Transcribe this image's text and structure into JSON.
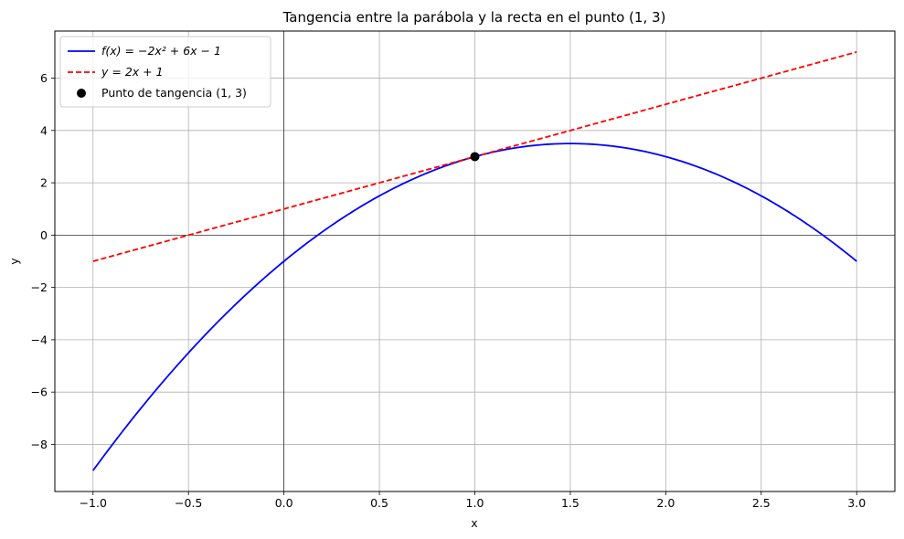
{
  "chart_data": {
    "type": "line",
    "title": "Tangencia entre la parábola y la recta en el punto (1, 3)",
    "xlabel": "x",
    "ylabel": "y",
    "xlim": [
      -1.2,
      3.2
    ],
    "ylim": [
      -9.8,
      7.8
    ],
    "xticks": [
      -1.0,
      -0.5,
      0.0,
      0.5,
      1.0,
      1.5,
      2.0,
      2.5,
      3.0
    ],
    "xtick_labels": [
      "−1.0",
      "−0.5",
      "0.0",
      "0.5",
      "1.0",
      "1.5",
      "2.0",
      "2.5",
      "3.0"
    ],
    "yticks": [
      -8,
      -6,
      -4,
      -2,
      0,
      2,
      4,
      6
    ],
    "ytick_labels": [
      "−8",
      "−6",
      "−4",
      "−2",
      "0",
      "2",
      "4",
      "6"
    ],
    "grid": true,
    "axis_lines": {
      "x": 0,
      "y": 0
    },
    "legend_position": "top-left",
    "series": [
      {
        "name": "f(x) = −2x² + 6x − 1",
        "kind": "line",
        "color": "#0000ff",
        "style": "solid",
        "x": [
          -1.0,
          -0.75,
          -0.5,
          -0.25,
          0.0,
          0.25,
          0.5,
          0.75,
          1.0,
          1.25,
          1.5,
          1.75,
          2.0,
          2.25,
          2.5,
          2.75,
          3.0
        ],
        "y": [
          -9.0,
          -6.625,
          -4.5,
          -2.625,
          -1.0,
          0.375,
          1.5,
          2.375,
          3.0,
          3.375,
          3.5,
          3.375,
          3.0,
          2.375,
          1.5,
          0.375,
          -1.0
        ]
      },
      {
        "name": "y = 2x + 1",
        "kind": "line",
        "color": "#ff0000",
        "style": "dashed",
        "x": [
          -1.0,
          3.0
        ],
        "y": [
          -1.0,
          7.0
        ]
      },
      {
        "name": "Punto de tangencia (1, 3)",
        "kind": "point",
        "color": "#000000",
        "x": [
          1.0
        ],
        "y": [
          3.0
        ]
      }
    ]
  }
}
